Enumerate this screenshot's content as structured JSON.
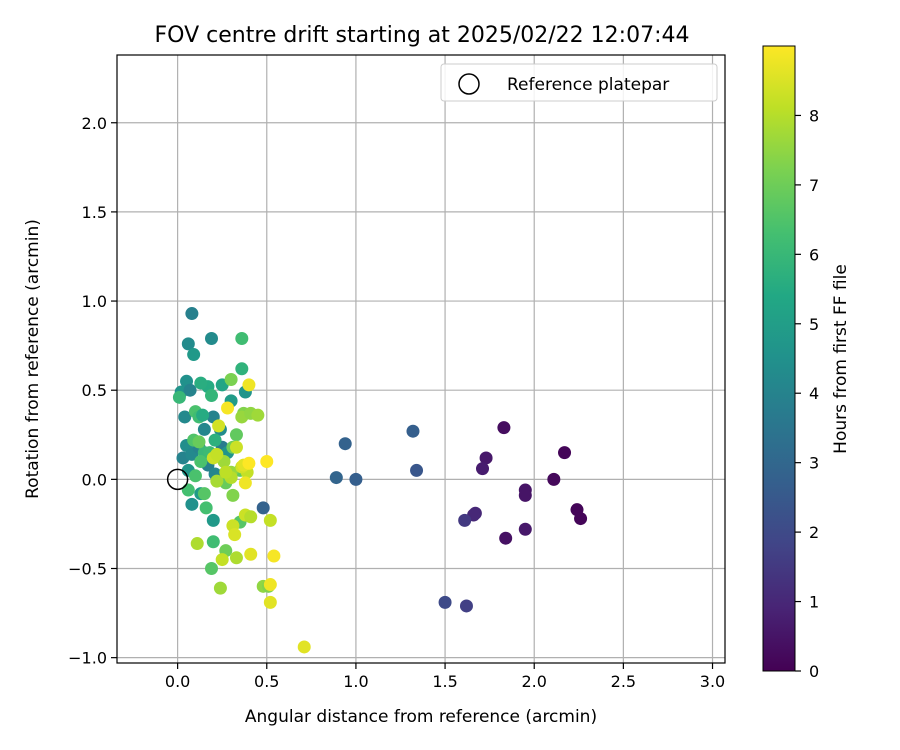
{
  "chart_data": {
    "type": "scatter",
    "title": "FOV centre drift starting at 2025/02/22 12:07:44",
    "xlabel": "Angular distance from reference (arcmin)",
    "ylabel": "Rotation from reference (arcmin)",
    "xlim": [
      -0.34,
      3.07
    ],
    "ylim": [
      -1.03,
      2.38
    ],
    "xticks": [
      0.0,
      0.5,
      1.0,
      1.5,
      2.0,
      2.5,
      3.0
    ],
    "xtick_labels": [
      "0.0",
      "0.5",
      "1.0",
      "1.5",
      "2.0",
      "2.5",
      "3.0"
    ],
    "yticks": [
      -1.0,
      -0.5,
      0.0,
      0.5,
      1.0,
      1.5,
      2.0
    ],
    "ytick_labels": [
      "−1.0",
      "−0.5",
      "0.0",
      "0.5",
      "1.0",
      "1.5",
      "2.0"
    ],
    "grid": true,
    "legend": {
      "placement": "top-right",
      "entries": [
        {
          "label": "Reference platepar",
          "marker": "open-circle"
        }
      ]
    },
    "reference_point": {
      "x": 0.0,
      "y": 0.0
    },
    "colorbar": {
      "label": "Hours from first FF file",
      "colormap": "viridis",
      "range": [
        0,
        9
      ],
      "ticks": [
        0,
        1,
        2,
        3,
        4,
        5,
        6,
        7,
        8
      ],
      "tick_labels": [
        "0",
        "1",
        "2",
        "3",
        "4",
        "5",
        "6",
        "7",
        "8"
      ]
    },
    "points": [
      {
        "x": 1.83,
        "y": 0.29,
        "c": 0.3
      },
      {
        "x": 1.73,
        "y": 0.12,
        "c": 0.6
      },
      {
        "x": 1.71,
        "y": 0.06,
        "c": 0.7
      },
      {
        "x": 1.95,
        "y": -0.06,
        "c": 0.5
      },
      {
        "x": 1.95,
        "y": -0.09,
        "c": 0.5
      },
      {
        "x": 1.95,
        "y": -0.28,
        "c": 0.6
      },
      {
        "x": 2.11,
        "y": 0.0,
        "c": 0.2
      },
      {
        "x": 2.17,
        "y": 0.15,
        "c": 0.1
      },
      {
        "x": 2.24,
        "y": -0.17,
        "c": 0.1
      },
      {
        "x": 2.26,
        "y": -0.22,
        "c": 0.1
      },
      {
        "x": 1.84,
        "y": -0.33,
        "c": 0.4
      },
      {
        "x": 1.67,
        "y": -0.19,
        "c": 1.0
      },
      {
        "x": 1.66,
        "y": -0.2,
        "c": 1.0
      },
      {
        "x": 1.61,
        "y": -0.23,
        "c": 1.5
      },
      {
        "x": 1.62,
        "y": -0.71,
        "c": 1.7
      },
      {
        "x": 1.5,
        "y": -0.69,
        "c": 2.0
      },
      {
        "x": 1.34,
        "y": 0.05,
        "c": 2.4
      },
      {
        "x": 1.32,
        "y": 0.27,
        "c": 2.7
      },
      {
        "x": 1.0,
        "y": 0.0,
        "c": 2.7
      },
      {
        "x": 0.89,
        "y": 0.01,
        "c": 2.9
      },
      {
        "x": 0.94,
        "y": 0.2,
        "c": 2.8
      },
      {
        "x": 0.48,
        "y": -0.16,
        "c": 2.8
      },
      {
        "x": 0.08,
        "y": 0.93,
        "c": 3.9
      },
      {
        "x": 0.06,
        "y": 0.76,
        "c": 4.3
      },
      {
        "x": 0.19,
        "y": 0.79,
        "c": 4.3
      },
      {
        "x": 0.09,
        "y": 0.7,
        "c": 4.8
      },
      {
        "x": 0.02,
        "y": 0.49,
        "c": 4.6
      },
      {
        "x": 0.05,
        "y": 0.55,
        "c": 4.5
      },
      {
        "x": 0.07,
        "y": 0.5,
        "c": 4.0
      },
      {
        "x": 0.04,
        "y": 0.35,
        "c": 4.2
      },
      {
        "x": 0.03,
        "y": 0.12,
        "c": 4.0
      },
      {
        "x": 0.05,
        "y": 0.19,
        "c": 4.4
      },
      {
        "x": 0.08,
        "y": 0.14,
        "c": 4.2
      },
      {
        "x": 0.12,
        "y": 0.18,
        "c": 4.0
      },
      {
        "x": 0.15,
        "y": 0.28,
        "c": 4.1
      },
      {
        "x": 0.17,
        "y": 0.08,
        "c": 3.9
      },
      {
        "x": 0.06,
        "y": 0.05,
        "c": 4.7
      },
      {
        "x": 0.08,
        "y": -0.14,
        "c": 4.5
      },
      {
        "x": 0.13,
        "y": -0.08,
        "c": 4.9
      },
      {
        "x": 0.2,
        "y": -0.23,
        "c": 4.8
      },
      {
        "x": 0.21,
        "y": 0.03,
        "c": 4.1
      },
      {
        "x": 0.25,
        "y": 0.18,
        "c": 3.7
      },
      {
        "x": 0.28,
        "y": 0.15,
        "c": 4.6
      },
      {
        "x": 0.24,
        "y": 0.28,
        "c": 4.3
      },
      {
        "x": 0.2,
        "y": 0.35,
        "c": 4.0
      },
      {
        "x": 0.17,
        "y": 0.52,
        "c": 5.5
      },
      {
        "x": 0.13,
        "y": 0.54,
        "c": 5.6
      },
      {
        "x": 0.19,
        "y": 0.47,
        "c": 5.9
      },
      {
        "x": 0.25,
        "y": 0.53,
        "c": 5.3
      },
      {
        "x": 0.3,
        "y": 0.44,
        "c": 4.9
      },
      {
        "x": 0.38,
        "y": 0.49,
        "c": 4.6
      },
      {
        "x": 0.36,
        "y": 0.62,
        "c": 5.8
      },
      {
        "x": 0.36,
        "y": 0.79,
        "c": 6.2
      },
      {
        "x": 0.01,
        "y": 0.46,
        "c": 6.0
      },
      {
        "x": 0.1,
        "y": 0.38,
        "c": 6.4
      },
      {
        "x": 0.12,
        "y": 0.35,
        "c": 6.2
      },
      {
        "x": 0.14,
        "y": 0.36,
        "c": 5.5
      },
      {
        "x": 0.21,
        "y": 0.22,
        "c": 5.7
      },
      {
        "x": 0.15,
        "y": 0.15,
        "c": 6.0
      },
      {
        "x": 0.13,
        "y": 0.1,
        "c": 6.4
      },
      {
        "x": 0.18,
        "y": 0.15,
        "c": 6.1
      },
      {
        "x": 0.09,
        "y": 0.22,
        "c": 6.5
      },
      {
        "x": 0.12,
        "y": 0.21,
        "c": 6.9
      },
      {
        "x": 0.1,
        "y": 0.02,
        "c": 6.4
      },
      {
        "x": 0.06,
        "y": -0.06,
        "c": 6.3
      },
      {
        "x": 0.15,
        "y": -0.08,
        "c": 6.6
      },
      {
        "x": 0.16,
        "y": -0.16,
        "c": 6.3
      },
      {
        "x": 0.2,
        "y": -0.35,
        "c": 6.2
      },
      {
        "x": 0.19,
        "y": -0.5,
        "c": 6.6
      },
      {
        "x": 0.27,
        "y": -0.4,
        "c": 7.0
      },
      {
        "x": 0.27,
        "y": -0.02,
        "c": 6.9
      },
      {
        "x": 0.31,
        "y": -0.09,
        "c": 7.3
      },
      {
        "x": 0.33,
        "y": 0.25,
        "c": 6.8
      },
      {
        "x": 0.37,
        "y": 0.37,
        "c": 7.3
      },
      {
        "x": 0.35,
        "y": 0.05,
        "c": 6.8
      },
      {
        "x": 0.31,
        "y": 0.18,
        "c": 7.0
      },
      {
        "x": 0.3,
        "y": 0.56,
        "c": 7.2
      },
      {
        "x": 0.36,
        "y": 0.35,
        "c": 7.6
      },
      {
        "x": 0.41,
        "y": 0.37,
        "c": 7.5
      },
      {
        "x": 0.45,
        "y": 0.36,
        "c": 7.7
      },
      {
        "x": 0.3,
        "y": 0.04,
        "c": 7.6
      },
      {
        "x": 0.35,
        "y": -0.24,
        "c": 6.6
      },
      {
        "x": 0.33,
        "y": -0.44,
        "c": 7.9
      },
      {
        "x": 0.48,
        "y": -0.6,
        "c": 7.5
      },
      {
        "x": 0.51,
        "y": -0.6,
        "c": 7.3
      },
      {
        "x": 0.24,
        "y": -0.61,
        "c": 7.7
      },
      {
        "x": 0.11,
        "y": -0.36,
        "c": 7.9
      },
      {
        "x": 0.22,
        "y": -0.01,
        "c": 7.8
      },
      {
        "x": 0.26,
        "y": 0.1,
        "c": 7.7
      },
      {
        "x": 0.3,
        "y": 0.01,
        "c": 8.0
      },
      {
        "x": 0.27,
        "y": 0.04,
        "c": 8.1
      },
      {
        "x": 0.39,
        "y": 0.04,
        "c": 8.2
      },
      {
        "x": 0.36,
        "y": 0.07,
        "c": 8.4
      },
      {
        "x": 0.37,
        "y": 0.08,
        "c": 8.6
      },
      {
        "x": 0.38,
        "y": -0.2,
        "c": 8.3
      },
      {
        "x": 0.41,
        "y": -0.21,
        "c": 8.0
      },
      {
        "x": 0.31,
        "y": -0.26,
        "c": 8.3
      },
      {
        "x": 0.32,
        "y": -0.31,
        "c": 8.5
      },
      {
        "x": 0.25,
        "y": -0.45,
        "c": 8.2
      },
      {
        "x": 0.41,
        "y": -0.42,
        "c": 8.6
      },
      {
        "x": 0.52,
        "y": -0.23,
        "c": 8.2
      },
      {
        "x": 0.52,
        "y": -0.59,
        "c": 8.8
      },
      {
        "x": 0.52,
        "y": -0.69,
        "c": 8.6
      },
      {
        "x": 0.54,
        "y": -0.43,
        "c": 8.9
      },
      {
        "x": 0.71,
        "y": -0.94,
        "c": 8.6
      },
      {
        "x": 0.5,
        "y": 0.1,
        "c": 9.0
      },
      {
        "x": 0.4,
        "y": 0.53,
        "c": 8.8
      },
      {
        "x": 0.28,
        "y": 0.4,
        "c": 8.9
      },
      {
        "x": 0.23,
        "y": 0.3,
        "c": 8.4
      },
      {
        "x": 0.33,
        "y": 0.18,
        "c": 8.3
      },
      {
        "x": 0.4,
        "y": 0.09,
        "c": 9.0
      },
      {
        "x": 0.38,
        "y": -0.02,
        "c": 8.8
      },
      {
        "x": 0.2,
        "y": 0.12,
        "c": 8.3
      },
      {
        "x": 0.22,
        "y": 0.14,
        "c": 8.2
      }
    ]
  }
}
